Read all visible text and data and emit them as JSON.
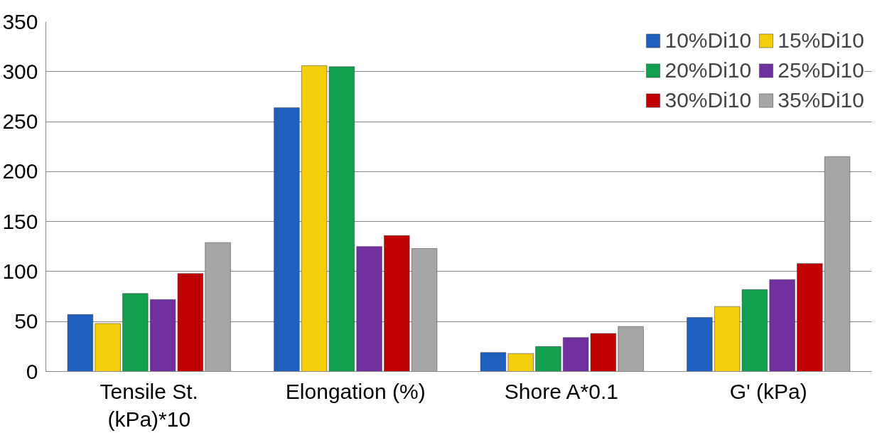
{
  "chart_data": {
    "type": "bar",
    "categories": [
      "Tensile St. (kPa)*10",
      "Elongation (%)",
      "Shore A*0.1",
      "G' (kPa)"
    ],
    "series": [
      {
        "name": "10%Di10",
        "color": "#1f5fbf",
        "values": [
          57,
          264,
          19,
          54
        ]
      },
      {
        "name": "15%Di10",
        "color": "#f2cf0a",
        "values": [
          48,
          306,
          18,
          65
        ]
      },
      {
        "name": "20%Di10",
        "color": "#12a050",
        "values": [
          78,
          305,
          25,
          82
        ]
      },
      {
        "name": "25%Di10",
        "color": "#7030a0",
        "values": [
          72,
          125,
          34,
          92
        ]
      },
      {
        "name": "30%Di10",
        "color": "#c00000",
        "values": [
          98,
          136,
          38,
          108
        ]
      },
      {
        "name": "35%Di10",
        "color": "#a6a6a6",
        "values": [
          129,
          123,
          45,
          215
        ]
      }
    ],
    "ylim": [
      0,
      350
    ],
    "yticks": [
      0,
      50,
      100,
      150,
      200,
      250,
      300,
      350
    ],
    "grid": "y",
    "legend": "top right"
  }
}
